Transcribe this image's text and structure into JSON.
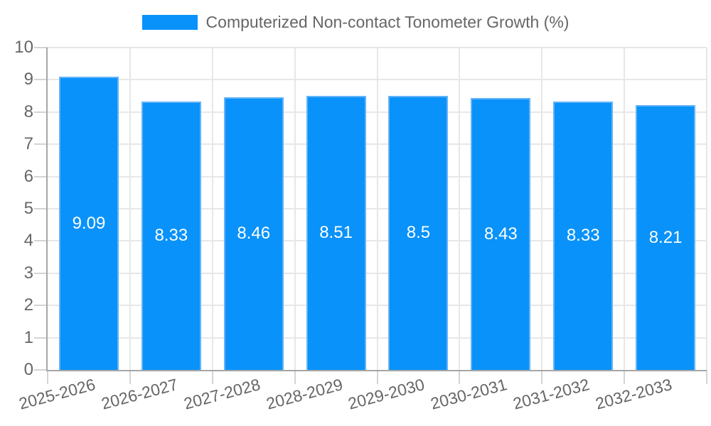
{
  "legend": {
    "label": "Computerized Non-contact Tonometer Growth (%)"
  },
  "chart_data": {
    "type": "bar",
    "title": "Computerized Non-contact Tonometer Growth (%)",
    "categories": [
      "2025-2026",
      "2026-2027",
      "2027-2028",
      "2028-2029",
      "2029-2030",
      "2030-2031",
      "2031-2032",
      "2032-2033"
    ],
    "values": [
      9.09,
      8.33,
      8.46,
      8.51,
      8.5,
      8.43,
      8.33,
      8.21
    ],
    "value_labels": [
      "9.09",
      "8.33",
      "8.46",
      "8.51",
      "8.5",
      "8.43",
      "8.33",
      "8.21"
    ],
    "xlabel": "",
    "ylabel": "",
    "ylim": [
      0,
      10
    ],
    "ytick_step": 1,
    "ytick_labels": [
      "0",
      "1",
      "2",
      "3",
      "4",
      "5",
      "6",
      "7",
      "8",
      "9",
      "10"
    ],
    "grid": true,
    "legend_position": "top",
    "x_tick_rotation_deg": -15,
    "colors": {
      "bar": "#0992fa",
      "bar_border": "#64b4f6",
      "bar_label": "#ffffff",
      "grid": "#e7e7e7",
      "axis": "#a6a6a6",
      "tick_mark": "#d4d4d4",
      "tick_text": "#666666",
      "legend_text": "#666666",
      "background": "#ffffff"
    }
  }
}
